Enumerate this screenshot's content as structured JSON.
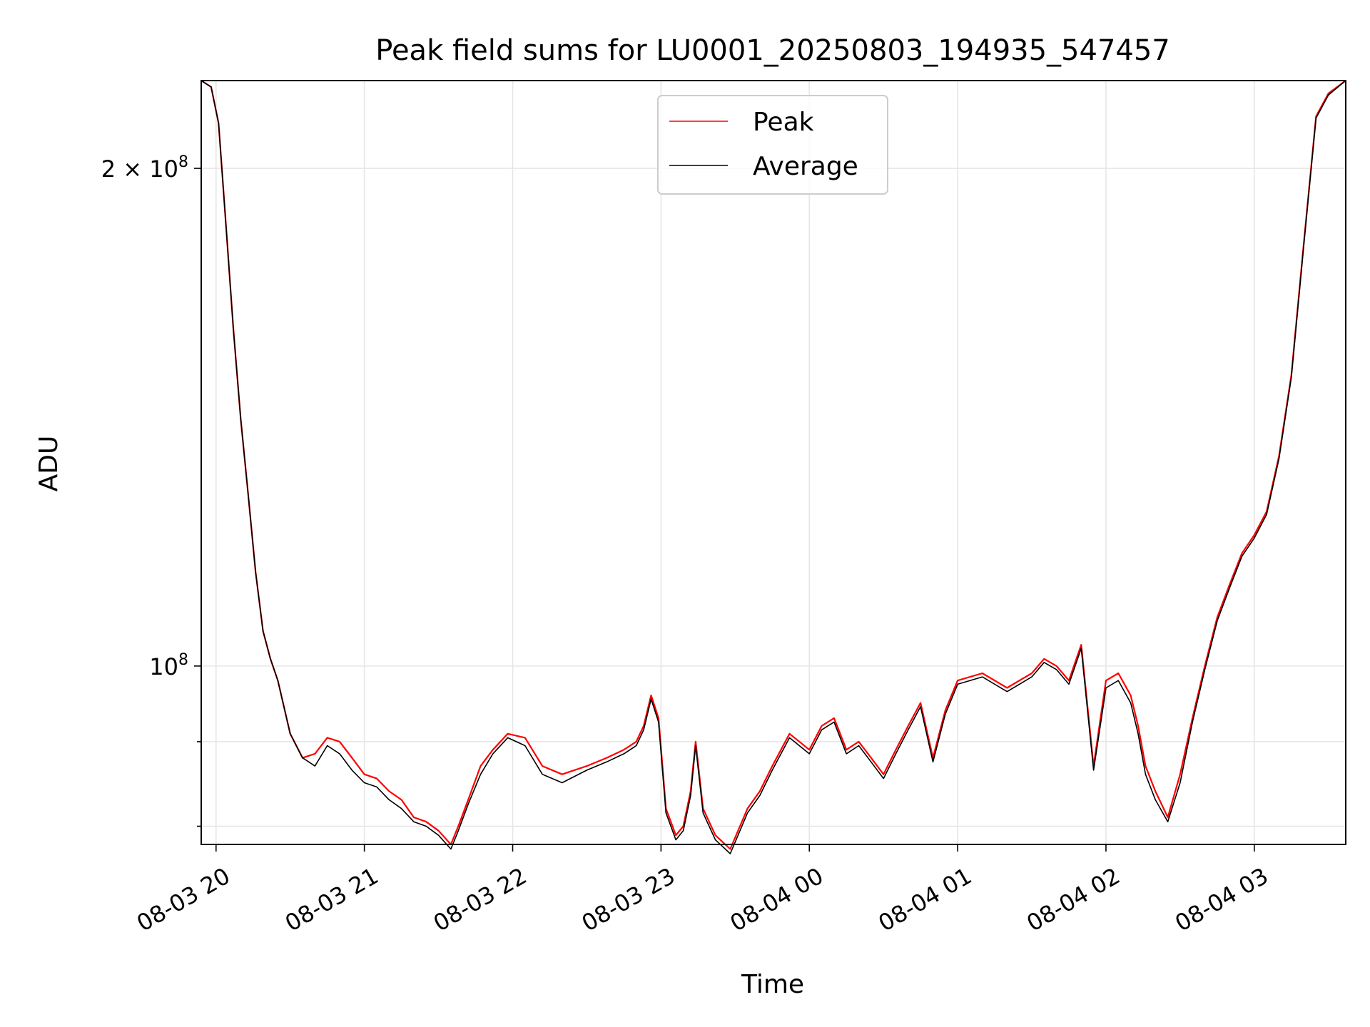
{
  "chart_data": {
    "type": "line",
    "title": "Peak field sums for LU0001_20250803_194935_547457",
    "xlabel": "Time",
    "ylabel": "ADU",
    "yscale": "log",
    "xlim": [
      "2025-08-03 19:54",
      "2025-08-04 03:37"
    ],
    "ylim": [
      78000000,
      226000000
    ],
    "grid": true,
    "legend_position": "upper center",
    "x_ticks": [
      {
        "value": "2025-08-03 20:00",
        "label": "08-03 20"
      },
      {
        "value": "2025-08-03 21:00",
        "label": "08-03 21"
      },
      {
        "value": "2025-08-03 22:00",
        "label": "08-03 22"
      },
      {
        "value": "2025-08-03 23:00",
        "label": "08-03 23"
      },
      {
        "value": "2025-08-04 00:00",
        "label": "08-04 00"
      },
      {
        "value": "2025-08-04 01:00",
        "label": "08-04 01"
      },
      {
        "value": "2025-08-04 02:00",
        "label": "08-04 02"
      },
      {
        "value": "2025-08-04 03:00",
        "label": "08-04 03"
      }
    ],
    "y_ticks_major": [
      {
        "value": 100000000,
        "base": "10",
        "exp": "8",
        "prefix": ""
      },
      {
        "value": 200000000,
        "base": "10",
        "exp": "8",
        "prefix": "2 × "
      }
    ],
    "y_ticks_minor": [
      80000000,
      90000000
    ],
    "series": [
      {
        "name": "Peak",
        "color": "#ff0000",
        "x": [
          "2025-08-03 19:54",
          "2025-08-03 19:58",
          "2025-08-03 20:01",
          "2025-08-03 20:04",
          "2025-08-03 20:07",
          "2025-08-03 20:10",
          "2025-08-03 20:13",
          "2025-08-03 20:16",
          "2025-08-03 20:19",
          "2025-08-03 20:22",
          "2025-08-03 20:25",
          "2025-08-03 20:30",
          "2025-08-03 20:35",
          "2025-08-03 20:40",
          "2025-08-03 20:45",
          "2025-08-03 20:50",
          "2025-08-03 20:55",
          "2025-08-03 21:00",
          "2025-08-03 21:05",
          "2025-08-03 21:10",
          "2025-08-03 21:15",
          "2025-08-03 21:20",
          "2025-08-03 21:25",
          "2025-08-03 21:30",
          "2025-08-03 21:35",
          "2025-08-03 21:38",
          "2025-08-03 21:42",
          "2025-08-03 21:47",
          "2025-08-03 21:52",
          "2025-08-03 21:58",
          "2025-08-03 22:05",
          "2025-08-03 22:12",
          "2025-08-03 22:20",
          "2025-08-03 22:30",
          "2025-08-03 22:38",
          "2025-08-03 22:45",
          "2025-08-03 22:50",
          "2025-08-03 22:53",
          "2025-08-03 22:56",
          "2025-08-03 22:59",
          "2025-08-03 23:02",
          "2025-08-03 23:06",
          "2025-08-03 23:09",
          "2025-08-03 23:12",
          "2025-08-03 23:14",
          "2025-08-03 23:17",
          "2025-08-03 23:22",
          "2025-08-03 23:28",
          "2025-08-03 23:35",
          "2025-08-03 23:40",
          "2025-08-03 23:45",
          "2025-08-03 23:52",
          "2025-08-04 00:00",
          "2025-08-04 00:05",
          "2025-08-04 00:10",
          "2025-08-04 00:15",
          "2025-08-04 00:20",
          "2025-08-04 00:25",
          "2025-08-04 00:30",
          "2025-08-04 00:35",
          "2025-08-04 00:40",
          "2025-08-04 00:45",
          "2025-08-04 00:50",
          "2025-08-04 00:55",
          "2025-08-04 01:00",
          "2025-08-04 01:10",
          "2025-08-04 01:20",
          "2025-08-04 01:25",
          "2025-08-04 01:30",
          "2025-08-04 01:35",
          "2025-08-04 01:40",
          "2025-08-04 01:45",
          "2025-08-04 01:50",
          "2025-08-04 01:55",
          "2025-08-04 02:00",
          "2025-08-04 02:05",
          "2025-08-04 02:10",
          "2025-08-04 02:13",
          "2025-08-04 02:16",
          "2025-08-04 02:20",
          "2025-08-04 02:25",
          "2025-08-04 02:30",
          "2025-08-04 02:35",
          "2025-08-04 02:40",
          "2025-08-04 02:45",
          "2025-08-04 02:50",
          "2025-08-04 02:55",
          "2025-08-04 03:00",
          "2025-08-04 03:05",
          "2025-08-04 03:10",
          "2025-08-04 03:15",
          "2025-08-04 03:20",
          "2025-08-04 03:25",
          "2025-08-04 03:30",
          "2025-08-04 03:37"
        ],
        "y": [
          226000000,
          224000000,
          213000000,
          185000000,
          160000000,
          141000000,
          127000000,
          114000000,
          105000000,
          101000000,
          98000000,
          91000000,
          88000000,
          88500000,
          90500000,
          90000000,
          88000000,
          86000000,
          85500000,
          84000000,
          83000000,
          81000000,
          80500000,
          79500000,
          78000000,
          80000000,
          83000000,
          87000000,
          89000000,
          91000000,
          90500000,
          87000000,
          86000000,
          87000000,
          88000000,
          89000000,
          90000000,
          92000000,
          96000000,
          93000000,
          82000000,
          79000000,
          80000000,
          84000000,
          90000000,
          82000000,
          79000000,
          77500000,
          82000000,
          84000000,
          87000000,
          91000000,
          89000000,
          92000000,
          93000000,
          89000000,
          90000000,
          88000000,
          86000000,
          89000000,
          92000000,
          95000000,
          88000000,
          94000000,
          98000000,
          99000000,
          97000000,
          98000000,
          99000000,
          101000000,
          100000000,
          98000000,
          103000000,
          87000000,
          98000000,
          99000000,
          96000000,
          92000000,
          87000000,
          84000000,
          81000000,
          86000000,
          93000000,
          100000000,
          107000000,
          112000000,
          117000000,
          120000000,
          124000000,
          134000000,
          150000000,
          180000000,
          215000000,
          222000000,
          226000000
        ]
      },
      {
        "name": "Average",
        "color": "#000000",
        "x": [
          "2025-08-03 19:54",
          "2025-08-03 19:58",
          "2025-08-03 20:01",
          "2025-08-03 20:04",
          "2025-08-03 20:07",
          "2025-08-03 20:10",
          "2025-08-03 20:13",
          "2025-08-03 20:16",
          "2025-08-03 20:19",
          "2025-08-03 20:22",
          "2025-08-03 20:25",
          "2025-08-03 20:30",
          "2025-08-03 20:35",
          "2025-08-03 20:40",
          "2025-08-03 20:45",
          "2025-08-03 20:50",
          "2025-08-03 20:55",
          "2025-08-03 21:00",
          "2025-08-03 21:05",
          "2025-08-03 21:10",
          "2025-08-03 21:15",
          "2025-08-03 21:20",
          "2025-08-03 21:25",
          "2025-08-03 21:30",
          "2025-08-03 21:35",
          "2025-08-03 21:38",
          "2025-08-03 21:42",
          "2025-08-03 21:47",
          "2025-08-03 21:52",
          "2025-08-03 21:58",
          "2025-08-03 22:05",
          "2025-08-03 22:12",
          "2025-08-03 22:20",
          "2025-08-03 22:30",
          "2025-08-03 22:38",
          "2025-08-03 22:45",
          "2025-08-03 22:50",
          "2025-08-03 22:53",
          "2025-08-03 22:56",
          "2025-08-03 22:59",
          "2025-08-03 23:02",
          "2025-08-03 23:06",
          "2025-08-03 23:09",
          "2025-08-03 23:12",
          "2025-08-03 23:14",
          "2025-08-03 23:17",
          "2025-08-03 23:22",
          "2025-08-03 23:28",
          "2025-08-03 23:35",
          "2025-08-03 23:40",
          "2025-08-03 23:45",
          "2025-08-03 23:52",
          "2025-08-04 00:00",
          "2025-08-04 00:05",
          "2025-08-04 00:10",
          "2025-08-04 00:15",
          "2025-08-04 00:20",
          "2025-08-04 00:25",
          "2025-08-04 00:30",
          "2025-08-04 00:35",
          "2025-08-04 00:40",
          "2025-08-04 00:45",
          "2025-08-04 00:50",
          "2025-08-04 00:55",
          "2025-08-04 01:00",
          "2025-08-04 01:10",
          "2025-08-04 01:20",
          "2025-08-04 01:25",
          "2025-08-04 01:30",
          "2025-08-04 01:35",
          "2025-08-04 01:40",
          "2025-08-04 01:45",
          "2025-08-04 01:50",
          "2025-08-04 01:55",
          "2025-08-04 02:00",
          "2025-08-04 02:05",
          "2025-08-04 02:10",
          "2025-08-04 02:13",
          "2025-08-04 02:16",
          "2025-08-04 02:20",
          "2025-08-04 02:25",
          "2025-08-04 02:30",
          "2025-08-04 02:35",
          "2025-08-04 02:40",
          "2025-08-04 02:45",
          "2025-08-04 02:50",
          "2025-08-04 02:55",
          "2025-08-04 03:00",
          "2025-08-04 03:05",
          "2025-08-04 03:10",
          "2025-08-04 03:15",
          "2025-08-04 03:20",
          "2025-08-04 03:25",
          "2025-08-04 03:30",
          "2025-08-04 03:37"
        ],
        "y": [
          226000000,
          224000000,
          213000000,
          185000000,
          160000000,
          141000000,
          127000000,
          114000000,
          105000000,
          101000000,
          98000000,
          91000000,
          88000000,
          87000000,
          89500000,
          88500000,
          86500000,
          85000000,
          84500000,
          83000000,
          82000000,
          80500000,
          80000000,
          79000000,
          77500000,
          79500000,
          82500000,
          86000000,
          88500000,
          90500000,
          89500000,
          86000000,
          85000000,
          86500000,
          87500000,
          88500000,
          89500000,
          91500000,
          95500000,
          92500000,
          81500000,
          78500000,
          79500000,
          83500000,
          89500000,
          81500000,
          78500000,
          77000000,
          81500000,
          83500000,
          86500000,
          90500000,
          88500000,
          91500000,
          92500000,
          88500000,
          89500000,
          87500000,
          85500000,
          88500000,
          91500000,
          94500000,
          87500000,
          93500000,
          97500000,
          98500000,
          96500000,
          97500000,
          98500000,
          100500000,
          99500000,
          97500000,
          102500000,
          86500000,
          97000000,
          98000000,
          95000000,
          91000000,
          86000000,
          83000000,
          80500000,
          85000000,
          92500000,
          99500000,
          106500000,
          111500000,
          116500000,
          119500000,
          123500000,
          133500000,
          149500000,
          179500000,
          214500000,
          221500000,
          226000000
        ]
      }
    ]
  }
}
